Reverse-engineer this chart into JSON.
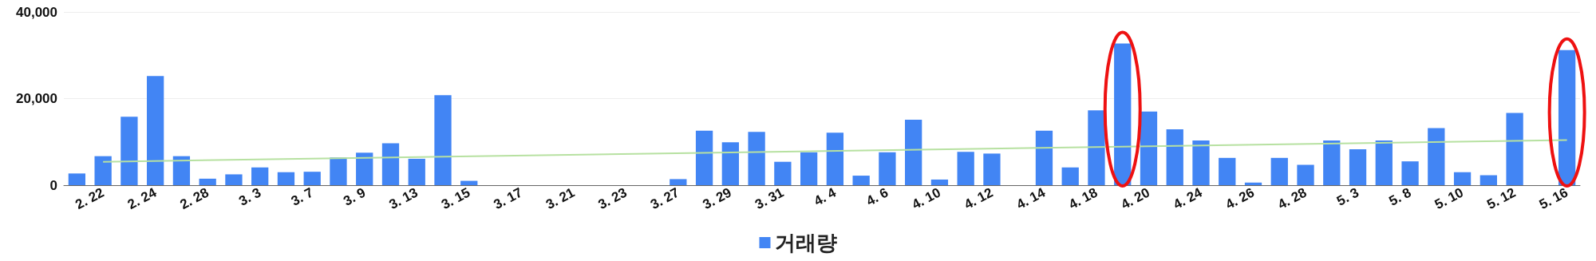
{
  "chart_data": {
    "type": "bar",
    "categories": [
      null,
      "2. 22",
      null,
      "2. 24",
      null,
      "2. 28",
      null,
      "3. 3",
      null,
      "3. 7",
      null,
      "3. 9",
      null,
      "3. 13",
      null,
      "3. 15",
      null,
      "3. 17",
      null,
      "3. 21",
      null,
      "3. 23",
      null,
      "3. 27",
      null,
      "3. 29",
      null,
      "3. 31",
      null,
      "4. 4",
      null,
      "4. 6",
      null,
      "4. 10",
      null,
      "4. 12",
      null,
      "4. 14",
      null,
      "4. 18",
      null,
      "4. 20",
      null,
      "4. 24",
      null,
      "4. 26",
      null,
      "4. 28",
      null,
      "5. 3",
      null,
      "5. 8",
      null,
      "5. 10",
      null,
      "5. 12",
      null,
      "5. 16"
    ],
    "series": [
      {
        "name": "거래량",
        "color": "#4285f4",
        "values": [
          2700,
          6700,
          15800,
          25200,
          6700,
          1500,
          2500,
          4100,
          3000,
          3100,
          6400,
          7500,
          9700,
          6100,
          20800,
          1000,
          0,
          0,
          0,
          0,
          0,
          0,
          0,
          1400,
          12600,
          9900,
          12300,
          5400,
          7600,
          12100,
          2200,
          7600,
          15100,
          1300,
          7700,
          7300,
          0,
          12600,
          4100,
          17300,
          32700,
          17000,
          12900,
          10300,
          6300,
          600,
          6300,
          4700,
          10300,
          8300,
          10300,
          5500,
          13200,
          3000,
          2300,
          16700,
          0,
          31200
        ]
      },
      {
        "type": "line",
        "color": "#b7e1a1",
        "x": [
          "2. 22",
          "5. 16"
        ],
        "values": [
          5400,
          10400
        ],
        "marker": "none"
      }
    ],
    "ylim": [
      0,
      40000
    ],
    "yticks": [
      {
        "value": 0,
        "label": "0"
      },
      {
        "value": 20000,
        "label": "20,000"
      },
      {
        "value": 40000,
        "label": "40,000"
      }
    ],
    "grid": "y",
    "legend": "bottom"
  }
}
